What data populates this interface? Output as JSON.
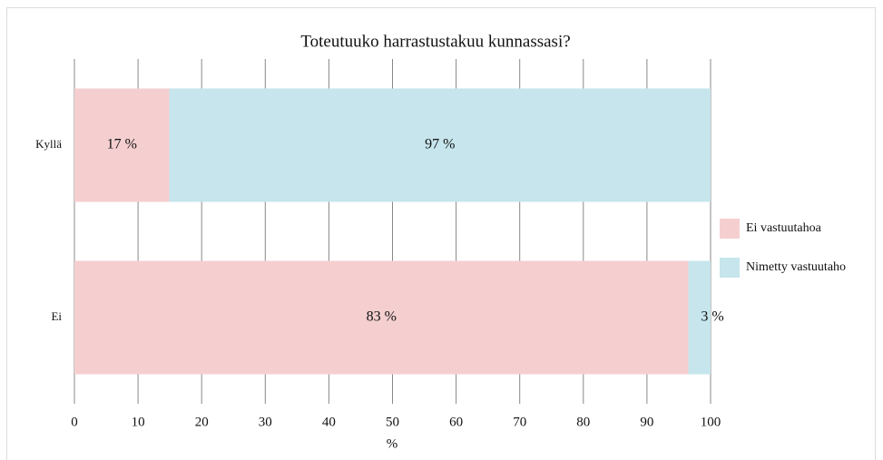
{
  "chart_data": {
    "type": "bar",
    "orientation": "horizontal",
    "stacked": "percent",
    "title": "Toteutuuko harrastustakuu kunnassasi?",
    "categories": [
      "Kyllä",
      "Ei"
    ],
    "series": [
      {
        "name": "Ei vastuutahoa",
        "color": "#f5cfd0",
        "values": [
          17,
          83
        ],
        "value_labels": [
          "17 %",
          "83 %"
        ]
      },
      {
        "name": "Nimetty vastuutaho",
        "color": "#c6e5ec",
        "values": [
          97,
          3
        ],
        "value_labels": [
          "97 %",
          "3 %"
        ]
      }
    ],
    "xlabel": "%",
    "xlim": [
      0,
      100
    ],
    "xticks": [
      0,
      10,
      20,
      30,
      40,
      50,
      60,
      70,
      80,
      90,
      100
    ],
    "grid": true,
    "legend": "right"
  }
}
